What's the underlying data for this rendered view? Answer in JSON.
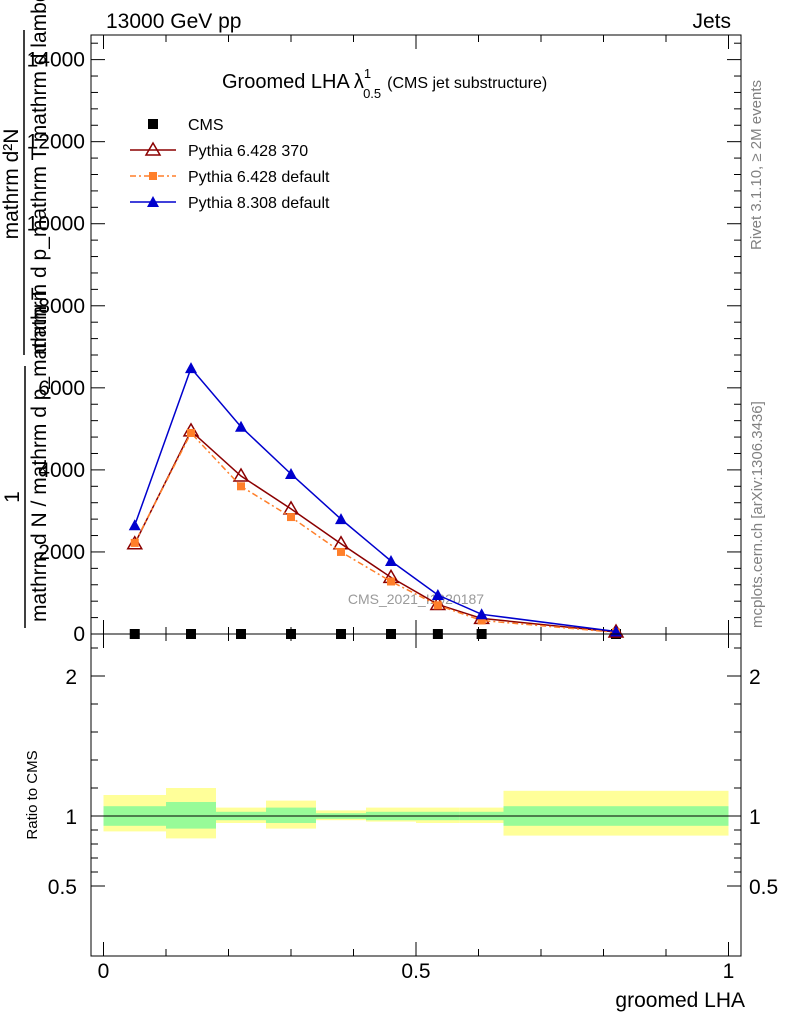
{
  "header": {
    "left_label": "13000 GeV pp",
    "right_label": "Jets"
  },
  "side_labels": {
    "rivet": "Rivet 3.1.10, ≥ 2M events",
    "mcplots": "mcplots.cern.ch [arXiv:1306.3436]"
  },
  "watermark": "CMS_2021_I1920187",
  "chart_data": [
    {
      "type": "line",
      "title_main": "Groomed LHA",
      "title_symbol": "λ",
      "title_sup": "1",
      "title_sub": "0.5",
      "title_suffix": "(CMS jet substructure)",
      "ylabel_numerator": "mathrm d²N",
      "ylabel_denominator": "mathrm d p_mathrm T mathrm d lambda",
      "ylabel_prefix": "1",
      "ylabel_prefix_denominator": "mathrm d N / mathrm d p_mathrm T",
      "xlim": [
        -0.02,
        1.02
      ],
      "ylim": [
        0,
        14600
      ],
      "yticks": [
        {
          "value": 0,
          "label": "0"
        },
        {
          "value": 2000,
          "label": "2000"
        },
        {
          "value": 4000,
          "label": "4000"
        },
        {
          "value": 6000,
          "label": "6000"
        },
        {
          "value": 8000,
          "label": "8000"
        },
        {
          "value": 10000,
          "label": "10000"
        },
        {
          "value": 12000,
          "label": "12000"
        },
        {
          "value": 14000,
          "label": "14000"
        }
      ],
      "legend_position": "top-left",
      "series": [
        {
          "name": "CMS",
          "color": "#000000",
          "marker": "square",
          "x": [
            0.05,
            0.14,
            0.22,
            0.3,
            0.38,
            0.46,
            0.535,
            0.605,
            0.82
          ],
          "y": [
            0,
            0,
            0,
            0,
            0,
            0,
            0,
            0,
            0
          ]
        },
        {
          "name": "Pythia 6.428 370",
          "color": "#8b0000",
          "marker": "open-triangle",
          "line": "solid",
          "x": [
            0.05,
            0.14,
            0.22,
            0.3,
            0.38,
            0.46,
            0.535,
            0.605,
            0.82
          ],
          "y": [
            2200,
            4950,
            3850,
            3050,
            2200,
            1380,
            720,
            380,
            50
          ]
        },
        {
          "name": "Pythia 6.428 default",
          "color": "#ff7f2a",
          "marker": "small-square",
          "line": "dashdot",
          "x": [
            0.05,
            0.14,
            0.22,
            0.3,
            0.38,
            0.46,
            0.535,
            0.605,
            0.82
          ],
          "y": [
            2220,
            4900,
            3600,
            2850,
            2000,
            1280,
            700,
            330,
            40
          ]
        },
        {
          "name": "Pythia 8.308 default",
          "color": "#0000cd",
          "marker": "filled-triangle",
          "line": "solid",
          "x": [
            0.05,
            0.14,
            0.22,
            0.3,
            0.38,
            0.46,
            0.535,
            0.605,
            0.82
          ],
          "y": [
            2650,
            6480,
            5050,
            3900,
            2800,
            1780,
            950,
            480,
            60
          ]
        }
      ]
    },
    {
      "type": "area",
      "ylabel": "Ratio to CMS",
      "xlabel": "groomed LHA",
      "xlim": [
        -0.02,
        1.02
      ],
      "ylim": [
        0.0,
        2.3
      ],
      "yticks": [
        {
          "value": 0.5,
          "label": "0.5"
        },
        {
          "value": 1,
          "label": "1"
        },
        {
          "value": 2,
          "label": "2"
        }
      ],
      "xticks": [
        {
          "value": 0,
          "label": "0"
        },
        {
          "value": 0.5,
          "label": "0.5"
        },
        {
          "value": 1,
          "label": "1"
        }
      ],
      "reference_line": 1,
      "band_colors": {
        "stat": "#98fb98",
        "total": "#ffff99"
      },
      "bins": [
        {
          "lo": 0.0,
          "hi": 0.1,
          "stat": [
            0.93,
            1.07
          ],
          "total": [
            0.89,
            1.15
          ]
        },
        {
          "lo": 0.1,
          "hi": 0.18,
          "stat": [
            0.91,
            1.1
          ],
          "total": [
            0.84,
            1.2
          ]
        },
        {
          "lo": 0.18,
          "hi": 0.26,
          "stat": [
            0.97,
            1.03
          ],
          "total": [
            0.95,
            1.06
          ]
        },
        {
          "lo": 0.26,
          "hi": 0.34,
          "stat": [
            0.95,
            1.06
          ],
          "total": [
            0.91,
            1.11
          ]
        },
        {
          "lo": 0.34,
          "hi": 0.42,
          "stat": [
            0.98,
            1.02
          ],
          "total": [
            0.97,
            1.04
          ]
        },
        {
          "lo": 0.42,
          "hi": 0.5,
          "stat": [
            0.97,
            1.03
          ],
          "total": [
            0.96,
            1.06
          ]
        },
        {
          "lo": 0.5,
          "hi": 0.57,
          "stat": [
            0.97,
            1.03
          ],
          "total": [
            0.95,
            1.06
          ]
        },
        {
          "lo": 0.57,
          "hi": 0.64,
          "stat": [
            0.97,
            1.03
          ],
          "total": [
            0.95,
            1.06
          ]
        },
        {
          "lo": 0.64,
          "hi": 1.0,
          "stat": [
            0.93,
            1.07
          ],
          "total": [
            0.86,
            1.18
          ]
        }
      ]
    }
  ]
}
